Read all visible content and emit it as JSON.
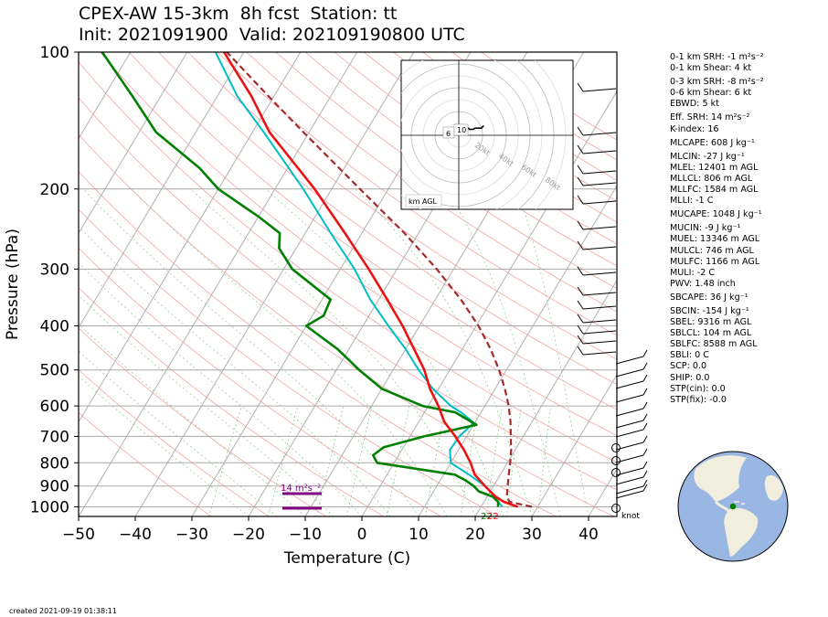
{
  "title": {
    "line1": "CPEX-AW 15-3km  8h fcst  Station: tt",
    "line2": "Init: 2021091900  Valid: 202109190800 UTC"
  },
  "footer": {
    "created": "created 2021-09-19 01:38:11"
  },
  "params": [
    "0-1 km SRH: -1 m²s⁻²",
    "0-1 km Shear: 4 kt",
    "0-3 km SRH: -8 m²s⁻²",
    "0-6 km Shear: 6 kt",
    "EBWD: 5 kt",
    "Eff. SRH: 14 m²s⁻²",
    "K-index: 16",
    "MLCAPE: 608 J kg⁻¹",
    "MLCIN: -27 J kg⁻¹",
    "MLEL: 12401 m AGL",
    "MLLCL: 806 m AGL",
    "MLLFC: 1584 m AGL",
    "MLLI: -1 C",
    "MUCAPE: 1048 J kg⁻¹",
    "MUCIN: -9 J kg⁻¹",
    "MUEL: 13346 m AGL",
    "MULCL: 746 m AGL",
    "MULFC: 1166 m AGL",
    "MULI: -2 C",
    "PWV: 1.48 inch",
    "SBCAPE: 36 J kg⁻¹",
    "SBCIN: -154 J kg⁻¹",
    "SBEL: 9316 m AGL",
    "SBLCL: 104 m AGL",
    "SBLFC: 8588 m AGL",
    "SBLI: 0 C",
    "SCP: 0.0",
    "SHIP: 0.0",
    "STP(cin): 0.0",
    "STP(fix): -0.0"
  ],
  "wind_units": "knot",
  "hodograph": {
    "ring_labels": [
      "20kt",
      "40kt",
      "60kt",
      "80kt"
    ],
    "level_labels": [
      "6",
      "10"
    ],
    "corner_label": "km AGL",
    "hodo_points": [
      [
        0,
        0
      ],
      [
        1,
        1.5
      ],
      [
        3,
        3
      ],
      [
        5,
        3
      ],
      [
        6,
        5
      ],
      [
        7,
        6
      ],
      [
        8,
        6
      ],
      [
        9,
        5
      ],
      [
        10,
        5
      ],
      [
        12,
        5
      ],
      [
        14,
        6
      ],
      [
        17,
        6
      ],
      [
        19,
        6
      ],
      [
        21,
        8
      ]
    ]
  },
  "srh_annotation": "14 m²s⁻²",
  "surface_labels": {
    "dewpoint": "22",
    "temperature": "22"
  },
  "colors": {
    "temperature": "#ee1111",
    "dewpoint": "#008000",
    "wetbulb": "#00bfc4",
    "parcel": "#a52a2a",
    "srh_bar": "#800080"
  },
  "chart_data": {
    "type": "line",
    "xlabel": "Temperature (C)",
    "ylabel": "Pressure (hPa)",
    "xlim": [
      -50,
      45
    ],
    "ylim": [
      1050,
      100
    ],
    "y_scale": "log",
    "skew": "skew-T log-p",
    "x_ticks": [
      -50,
      -40,
      -30,
      -20,
      -10,
      0,
      10,
      20,
      30,
      40
    ],
    "y_ticks": [
      100,
      200,
      300,
      400,
      500,
      600,
      700,
      800,
      900,
      1000
    ],
    "grid": true,
    "series": [
      {
        "key": "temperature",
        "pressure": [
          1000,
          975,
          950,
          925,
          900,
          850,
          800,
          750,
          700,
          650,
          600,
          550,
          500,
          450,
          400,
          350,
          300,
          250,
          200,
          150,
          125,
          100
        ],
        "values": [
          26.5,
          23.5,
          21.5,
          20,
          18.5,
          15.5,
          13.5,
          11,
          8,
          4.5,
          1.8,
          -1.5,
          -4.5,
          -8.5,
          -13,
          -18.5,
          -25,
          -33,
          -43,
          -57,
          -64,
          -73.5
        ]
      },
      {
        "key": "wetbulb",
        "pressure": [
          1000,
          975,
          950,
          925,
          900,
          850,
          800,
          750,
          700,
          660,
          650,
          620,
          600,
          550,
          500,
          450,
          400,
          350,
          300,
          250,
          200,
          150,
          125,
          100
        ],
        "values": [
          23.8,
          22.5,
          21.3,
          20,
          18.5,
          14.5,
          10,
          8.5,
          8.7,
          9.7,
          9.5,
          6.5,
          4,
          -1,
          -5.5,
          -10,
          -15.5,
          -21.5,
          -27.5,
          -35.5,
          -45,
          -58,
          -66.5,
          -75
        ]
      },
      {
        "key": "dewpoint",
        "pressure": [
          1000,
          975,
          950,
          925,
          900,
          875,
          850,
          800,
          770,
          740,
          700,
          680,
          660,
          620,
          600,
          550,
          500,
          450,
          400,
          380,
          350,
          300,
          270,
          250,
          230,
          200,
          180,
          150,
          125,
          100
        ],
        "values": [
          23,
          22.5,
          21,
          18,
          16.5,
          14.5,
          12,
          -3,
          -4.5,
          -3.5,
          2.5,
          6.5,
          10.5,
          5.5,
          -1,
          -10,
          -16,
          -22,
          -30,
          -28,
          -28.5,
          -38.5,
          -43,
          -44.5,
          -50,
          -60,
          -65.5,
          -77,
          -85,
          -95
        ]
      },
      {
        "key": "parcel",
        "pressure": [
          1000,
          975,
          950,
          925,
          900,
          850,
          800,
          750,
          700,
          650,
          600,
          550,
          500,
          450,
          400,
          350,
          300,
          250,
          200,
          150,
          125,
          100
        ],
        "values": [
          29,
          24.5,
          23.5,
          23,
          22.5,
          21.5,
          20.5,
          19.3,
          17.8,
          16.2,
          14.2,
          11.7,
          8.7,
          5,
          0.4,
          -5.5,
          -13,
          -22.5,
          -35,
          -51,
          -61,
          -73
        ]
      }
    ]
  }
}
